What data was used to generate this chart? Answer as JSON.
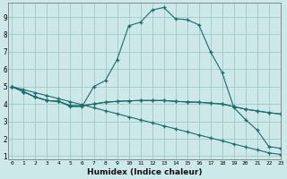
{
  "title": "",
  "xlabel": "Humidex (Indice chaleur)",
  "xlim": [
    0,
    23
  ],
  "ylim": [
    1,
    9.8
  ],
  "yticks": [
    1,
    2,
    3,
    4,
    5,
    6,
    7,
    8,
    9
  ],
  "xticks": [
    0,
    1,
    2,
    3,
    4,
    5,
    6,
    7,
    8,
    9,
    10,
    11,
    12,
    13,
    14,
    15,
    16,
    17,
    18,
    19,
    20,
    21,
    22,
    23
  ],
  "bg_color": "#cde8e8",
  "grid_color": "#9ec8c8",
  "line_color": "#1a6b6b",
  "line1_x": [
    0,
    1,
    2,
    3,
    4,
    5,
    6,
    7,
    8,
    9,
    10,
    11,
    12,
    13,
    14,
    15,
    16,
    17,
    18,
    19,
    20,
    21,
    22,
    23
  ],
  "line1_y": [
    5.0,
    4.7,
    4.4,
    4.2,
    4.15,
    3.85,
    3.85,
    5.0,
    5.35,
    6.55,
    8.5,
    8.7,
    9.4,
    9.55,
    8.9,
    8.85,
    8.55,
    7.0,
    5.8,
    3.8,
    3.1,
    2.5,
    1.55,
    1.45
  ],
  "line2_x": [
    0,
    1,
    2,
    3,
    4,
    5,
    6,
    7,
    8,
    9,
    10,
    11,
    12,
    13,
    14,
    15,
    16,
    17,
    18,
    19,
    20,
    21,
    22,
    23
  ],
  "line2_y": [
    5.0,
    4.82,
    4.65,
    4.48,
    4.3,
    4.13,
    3.96,
    3.78,
    3.61,
    3.44,
    3.26,
    3.09,
    2.92,
    2.74,
    2.57,
    2.4,
    2.22,
    2.05,
    1.88,
    1.7,
    1.53,
    1.36,
    1.19,
    1.1
  ],
  "line3_x": [
    0,
    1,
    2,
    3,
    4,
    5,
    6,
    7,
    8,
    9,
    10,
    11,
    12,
    13,
    14,
    15,
    16,
    17,
    18,
    19,
    20,
    21,
    22,
    23
  ],
  "line3_y": [
    5.0,
    4.7,
    4.4,
    4.2,
    4.15,
    3.9,
    3.9,
    4.0,
    4.1,
    4.15,
    4.18,
    4.2,
    4.2,
    4.2,
    4.15,
    4.12,
    4.1,
    4.05,
    4.0,
    3.85,
    3.7,
    3.6,
    3.5,
    3.42
  ],
  "line4_x": [
    0,
    1,
    2,
    3,
    4,
    5,
    6,
    7,
    8,
    9,
    10,
    11,
    12,
    13,
    14,
    15,
    16,
    17,
    18,
    19,
    20,
    21,
    22,
    23
  ],
  "line4_y": [
    5.0,
    4.7,
    4.4,
    4.2,
    4.15,
    3.9,
    3.9,
    4.0,
    4.1,
    4.15,
    4.18,
    4.2,
    4.2,
    4.2,
    4.15,
    4.12,
    4.1,
    4.05,
    4.0,
    3.85,
    3.7,
    3.6,
    3.5,
    3.42
  ]
}
